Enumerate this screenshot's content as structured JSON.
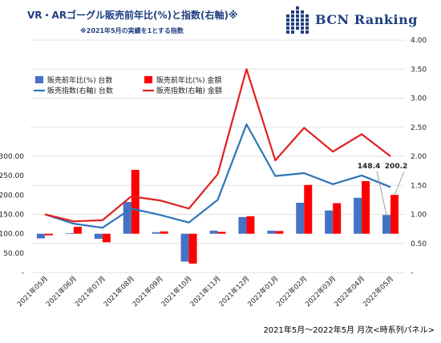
{
  "header": {
    "title": "VR・ARゴーグル販売前年比(%)と指数(右軸)※",
    "subtitle": "※2021年5月の実績を1とする指数",
    "brand": "BCN Ranking"
  },
  "footer": {
    "caption": "2021年5月～2022年5月 月次<時系列パネル>"
  },
  "colors": {
    "blue": "#4472c4",
    "red": "#ff0000",
    "line_blue": "#2e75b6",
    "line_red": "#e02020"
  },
  "chart_data": {
    "type": "bar",
    "categories": [
      "2021年05月",
      "2021年06月",
      "2021年07月",
      "2021年08月",
      "2021年09月",
      "2021年10月",
      "2021年11月",
      "2021年12月",
      "2022年01月",
      "2022年02月",
      "2022年03月",
      "2022年04月",
      "2022年05月"
    ],
    "series": [
      {
        "name": "販売前年比(%) 台数",
        "type": "bar",
        "axis": "left",
        "color": "#4472c4",
        "values": [
          88,
          101,
          87,
          182,
          104,
          28,
          108,
          143,
          108,
          180,
          160,
          193,
          148.4
        ]
      },
      {
        "name": "販売前年比(%) 金額",
        "type": "bar",
        "axis": "left",
        "color": "#ff0000",
        "values": [
          96,
          118,
          78,
          265,
          106,
          23,
          105,
          145,
          107,
          226,
          179,
          236,
          200.2
        ]
      },
      {
        "name": "販売指数(右軸) 台数",
        "type": "line",
        "axis": "right",
        "color": "#2e75b6",
        "values": [
          1.0,
          0.84,
          0.77,
          1.1,
          0.99,
          0.86,
          1.25,
          2.55,
          1.66,
          1.71,
          1.52,
          1.67,
          1.47
        ]
      },
      {
        "name": "販売指数(右軸) 金額",
        "type": "line",
        "axis": "right",
        "color": "#e02020",
        "values": [
          1.0,
          0.88,
          0.9,
          1.31,
          1.24,
          1.1,
          1.69,
          3.5,
          1.93,
          2.49,
          2.08,
          2.38,
          2.0
        ]
      }
    ],
    "y_left": {
      "ticks": [
        "-",
        "50.00",
        "100.00",
        "150.00",
        "200.00",
        "250.00",
        "300.00"
      ],
      "ylim": [
        0,
        300
      ]
    },
    "y_right": {
      "ticks": [
        "-",
        "0.50",
        "1.00",
        "1.50",
        "2.00",
        "2.50",
        "3.00",
        "3.50",
        "4.00"
      ],
      "ylim": [
        0,
        4
      ]
    },
    "data_labels": [
      {
        "series": 0,
        "index": 12,
        "text": "148.4"
      },
      {
        "series": 1,
        "index": 12,
        "text": "200.2"
      }
    ],
    "legend_position": "top-left",
    "grid": true
  }
}
